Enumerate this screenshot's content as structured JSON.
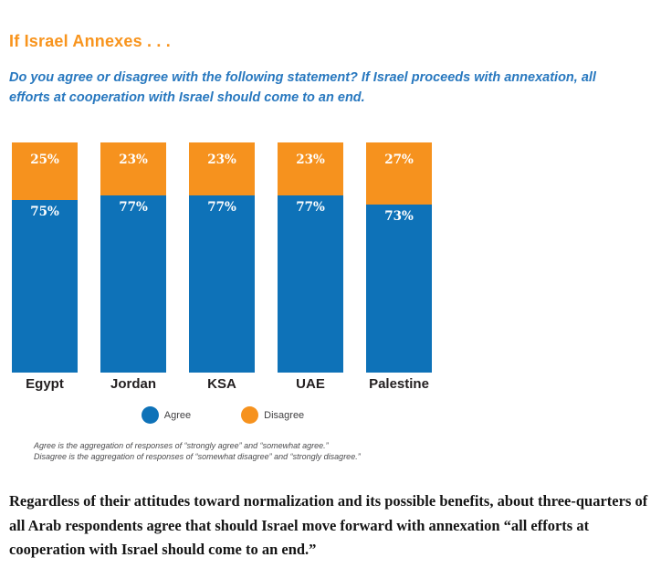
{
  "header": {
    "title": "If Israel Annexes . . .",
    "question": "Do you agree or disagree with the following statement? If Israel proceeds with annexation, all efforts at cooperation with Israel should come to an end."
  },
  "chart_data": {
    "type": "bar",
    "subtype": "stacked-100-percent",
    "title": "If Israel Annexes . . .",
    "categories": [
      "Egypt",
      "Jordan",
      "KSA",
      "UAE",
      "Palestine"
    ],
    "series": [
      {
        "name": "Agree",
        "color": "#0e72b8",
        "values": [
          75,
          77,
          77,
          77,
          73
        ]
      },
      {
        "name": "Disagree",
        "color": "#f6921e",
        "values": [
          25,
          23,
          23,
          23,
          27
        ]
      }
    ],
    "value_suffix": "%",
    "ylim": [
      0,
      100
    ],
    "grid": false,
    "axes_visible": false,
    "legend_position": "bottom"
  },
  "legend": {
    "items": [
      {
        "label": "Agree",
        "color": "#0e72b8"
      },
      {
        "label": "Disagree",
        "color": "#f6921e"
      }
    ]
  },
  "footnote": {
    "line1": "Agree is the aggregation of responses of “strongly agree” and “somewhat agree.”",
    "line2": "Disagree is the aggregation of responses of “somewhat disagree” and “strongly disagree.”"
  },
  "body_paragraph": "Regardless of their attitudes toward normalization and its possible benefits, about three-quarters of all Arab respondents agree that should Israel move forward with annexation “all efforts at cooperation with Israel should come to an end.”",
  "colors": {
    "title_orange": "#f8941d",
    "question_blue": "#2878bf",
    "bar_blue": "#0e72b8",
    "bar_orange": "#f6921e",
    "category_label": "#231f20",
    "footnote_gray": "#4a4a4c"
  }
}
